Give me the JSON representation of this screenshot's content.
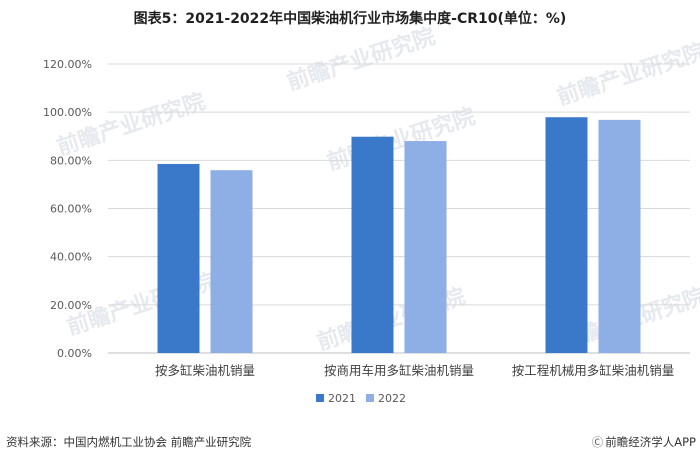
{
  "title": "图表5：2021-2022年中国柴油机行业市场集中度-CR10(单位：%)",
  "footer": {
    "source": "资料来源：中国内燃机工业协会 前瞻产业研究院",
    "brand_logo": "Ⓒ",
    "brand": "前瞻经济学人APP"
  },
  "watermark": "前瞻产业研究院",
  "chart_data": {
    "type": "bar",
    "categories": [
      "按多缸柴油机销量",
      "按商用车用多缸柴油机销量",
      "按工程机械用多缸柴油机销量"
    ],
    "series": [
      {
        "name": "2021",
        "values": [
          78.5,
          89.8,
          97.9
        ],
        "color": "#3a78c9"
      },
      {
        "name": "2022",
        "values": [
          75.9,
          88.0,
          96.8
        ],
        "color": "#8eaee6"
      }
    ],
    "ylim": [
      0,
      120
    ],
    "yticks": [
      "0.00%",
      "20.00%",
      "40.00%",
      "60.00%",
      "80.00%",
      "100.00%",
      "120.00%"
    ],
    "ytick_values": [
      0,
      20,
      40,
      60,
      80,
      100,
      120
    ],
    "grid": true,
    "legend": "bottom",
    "xlabel": "",
    "ylabel": ""
  }
}
